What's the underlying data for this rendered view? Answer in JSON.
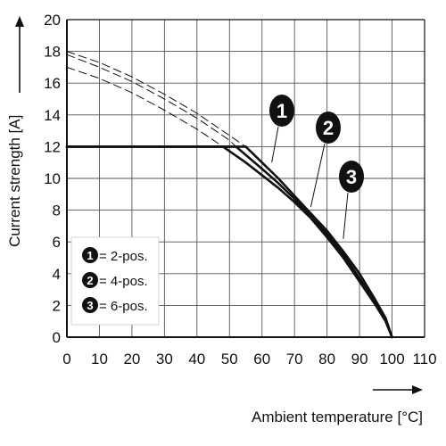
{
  "chart_data": {
    "type": "line",
    "xlabel": "Ambient temperature [°C]",
    "ylabel": "Current strength [A]",
    "xlim": [
      0,
      110
    ],
    "ylim": [
      0,
      20
    ],
    "x_ticks": [
      "0",
      "10",
      "20",
      "30",
      "40",
      "50",
      "60",
      "70",
      "80",
      "90",
      "100",
      "110"
    ],
    "y_ticks": [
      "0",
      "2",
      "4",
      "6",
      "8",
      "10",
      "12",
      "14",
      "16",
      "18",
      "20"
    ],
    "grid": true,
    "legend_position": "bottom-left",
    "legend": [
      {
        "badge": "1",
        "label": "= 2-pos."
      },
      {
        "badge": "2",
        "label": "= 4-pos."
      },
      {
        "badge": "3",
        "label": "= 6-pos."
      }
    ],
    "series": [
      {
        "badge": "1",
        "style": "solid",
        "x": [
          0,
          55,
          60,
          65,
          70,
          75,
          80,
          85,
          90,
          95,
          98,
          100
        ],
        "y": [
          12,
          12,
          11,
          10,
          8.9,
          7.8,
          6.7,
          5.4,
          4,
          2.3,
          1.2,
          0
        ]
      },
      {
        "badge": "2",
        "style": "solid",
        "x": [
          0,
          52,
          60,
          65,
          70,
          75,
          80,
          85,
          90,
          95,
          98,
          100
        ],
        "y": [
          12,
          12,
          10.6,
          9.7,
          8.7,
          7.6,
          6.5,
          5.2,
          3.7,
          2.1,
          1.1,
          0
        ]
      },
      {
        "badge": "3",
        "style": "solid",
        "x": [
          0,
          48,
          55,
          60,
          65,
          70,
          75,
          80,
          85,
          90,
          95,
          98,
          100
        ],
        "y": [
          12,
          12,
          11,
          10.2,
          9.4,
          8.5,
          7.5,
          6.3,
          5,
          3.5,
          2,
          1,
          0
        ]
      },
      {
        "badge": "1",
        "style": "dashed",
        "x": [
          0,
          10,
          20,
          30,
          40,
          50,
          55
        ],
        "y": [
          18,
          17.3,
          16.4,
          15.3,
          14.1,
          12.7,
          12
        ]
      },
      {
        "badge": "2",
        "style": "dashed",
        "x": [
          0,
          10,
          20,
          30,
          40,
          50,
          52
        ],
        "y": [
          17.8,
          17,
          16.1,
          15,
          13.8,
          12.4,
          12
        ]
      },
      {
        "badge": "3",
        "style": "dashed",
        "x": [
          0,
          10,
          20,
          30,
          40,
          48
        ],
        "y": [
          17,
          16.3,
          15.4,
          14.3,
          13.1,
          12
        ]
      }
    ],
    "callouts": [
      {
        "badge": "1",
        "at": [
          63,
          11
        ]
      },
      {
        "badge": "2",
        "at": [
          75,
          8.2
        ]
      },
      {
        "badge": "3",
        "at": [
          85,
          6.2
        ]
      }
    ]
  }
}
